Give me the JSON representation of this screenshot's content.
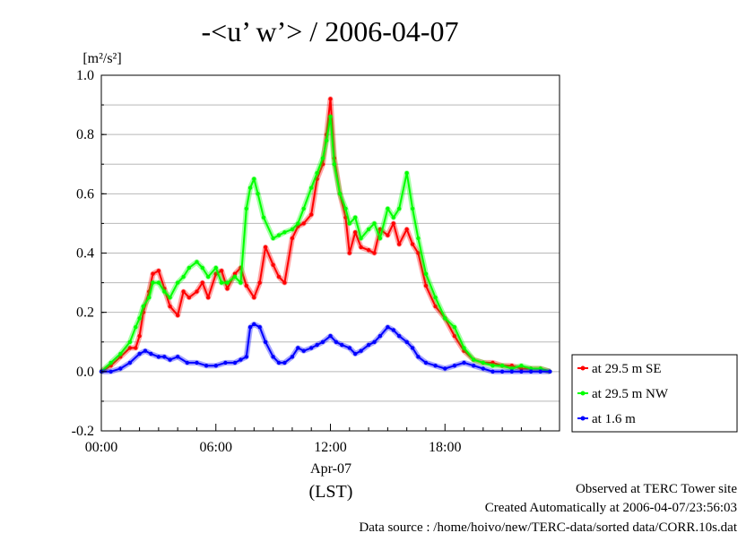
{
  "chart_data": {
    "type": "line",
    "title": "-<u’ w’> / 2006-04-07",
    "ylabel": "[m²/s²]",
    "ylim": [
      -0.2,
      1.0
    ],
    "yticks": [
      -0.2,
      0.0,
      0.2,
      0.4,
      0.6,
      0.8,
      1.0
    ],
    "ytick_labels": [
      "-0.2",
      "0.0",
      "0.2",
      "0.4",
      "0.6",
      "0.8",
      "1.0"
    ],
    "xlim": [
      0,
      24
    ],
    "xticks": [
      0,
      6,
      12,
      18
    ],
    "xtick_labels": [
      "00:00",
      "06:00",
      "12:00",
      "18:00"
    ],
    "xlabel_date": "Apr-07",
    "xlabel_tz": "(LST)",
    "grid": true,
    "legend_position": "right, outside plot",
    "series": [
      {
        "name": "at 29.5 m SE",
        "color": "#ff0000",
        "x": [
          0,
          0.5,
          1,
          1.5,
          1.8,
          2,
          2.2,
          2.5,
          2.7,
          3,
          3.3,
          3.6,
          4,
          4.3,
          4.6,
          5,
          5.3,
          5.6,
          6,
          6.3,
          6.6,
          7,
          7.3,
          7.6,
          8,
          8.3,
          8.6,
          9,
          9.3,
          9.6,
          10,
          10.3,
          10.6,
          11,
          11.3,
          11.6,
          11.8,
          12,
          12.2,
          12.5,
          12.8,
          13,
          13.3,
          13.6,
          14,
          14.3,
          14.6,
          15,
          15.3,
          15.6,
          16,
          16.3,
          16.6,
          17,
          17.5,
          18,
          18.5,
          19,
          19.5,
          20,
          20.5,
          21,
          21.5,
          22,
          22.5,
          23,
          23.5
        ],
        "y": [
          0.0,
          0.02,
          0.05,
          0.08,
          0.08,
          0.12,
          0.2,
          0.27,
          0.33,
          0.34,
          0.28,
          0.22,
          0.19,
          0.27,
          0.25,
          0.27,
          0.3,
          0.25,
          0.33,
          0.34,
          0.28,
          0.33,
          0.35,
          0.29,
          0.25,
          0.3,
          0.42,
          0.36,
          0.32,
          0.3,
          0.45,
          0.49,
          0.5,
          0.53,
          0.65,
          0.7,
          0.8,
          0.92,
          0.72,
          0.6,
          0.52,
          0.4,
          0.47,
          0.42,
          0.41,
          0.4,
          0.48,
          0.46,
          0.5,
          0.43,
          0.48,
          0.43,
          0.4,
          0.29,
          0.22,
          0.18,
          0.12,
          0.07,
          0.04,
          0.03,
          0.03,
          0.02,
          0.02,
          0.01,
          0.01,
          0.01,
          0.0
        ]
      },
      {
        "name": "at 29.5 m NW",
        "color": "#00ff00",
        "x": [
          0,
          0.5,
          1,
          1.5,
          1.8,
          2,
          2.2,
          2.5,
          2.7,
          3,
          3.3,
          3.6,
          4,
          4.3,
          4.6,
          5,
          5.3,
          5.6,
          6,
          6.3,
          6.6,
          7,
          7.3,
          7.6,
          7.8,
          8,
          8.2,
          8.5,
          9,
          9.3,
          9.6,
          10,
          10.3,
          10.6,
          11,
          11.3,
          11.6,
          11.8,
          12,
          12.2,
          12.5,
          12.8,
          13,
          13.3,
          13.6,
          14,
          14.3,
          14.6,
          15,
          15.3,
          15.6,
          16,
          16.3,
          16.6,
          17,
          17.5,
          18,
          18.5,
          19,
          19.5,
          20,
          20.5,
          21,
          21.5,
          22,
          22.5,
          23,
          23.5
        ],
        "y": [
          0.0,
          0.03,
          0.06,
          0.1,
          0.15,
          0.18,
          0.22,
          0.25,
          0.3,
          0.3,
          0.27,
          0.25,
          0.3,
          0.32,
          0.35,
          0.37,
          0.35,
          0.32,
          0.35,
          0.3,
          0.3,
          0.32,
          0.3,
          0.55,
          0.62,
          0.65,
          0.6,
          0.52,
          0.45,
          0.46,
          0.47,
          0.48,
          0.5,
          0.55,
          0.62,
          0.67,
          0.72,
          0.78,
          0.86,
          0.7,
          0.6,
          0.55,
          0.5,
          0.52,
          0.45,
          0.48,
          0.5,
          0.45,
          0.55,
          0.52,
          0.55,
          0.67,
          0.55,
          0.45,
          0.33,
          0.25,
          0.18,
          0.15,
          0.08,
          0.04,
          0.03,
          0.02,
          0.02,
          0.01,
          0.02,
          0.01,
          0.01,
          0.0
        ]
      },
      {
        "name": "at 1.6 m",
        "color": "#0000ff",
        "x": [
          0,
          0.5,
          1,
          1.5,
          2,
          2.3,
          2.6,
          3,
          3.3,
          3.6,
          4,
          4.5,
          5,
          5.5,
          6,
          6.5,
          7,
          7.3,
          7.6,
          7.8,
          8,
          8.3,
          8.6,
          9,
          9.3,
          9.6,
          10,
          10.3,
          10.6,
          11,
          11.3,
          11.6,
          12,
          12.3,
          12.6,
          13,
          13.3,
          13.6,
          14,
          14.3,
          14.6,
          15,
          15.3,
          15.6,
          16,
          16.3,
          16.6,
          17,
          17.5,
          18,
          18.5,
          19,
          19.5,
          20,
          20.5,
          21,
          21.5,
          22,
          22.5,
          23,
          23.5
        ],
        "y": [
          0.0,
          0.0,
          0.01,
          0.03,
          0.06,
          0.07,
          0.06,
          0.05,
          0.05,
          0.04,
          0.05,
          0.03,
          0.03,
          0.02,
          0.02,
          0.03,
          0.03,
          0.04,
          0.05,
          0.15,
          0.16,
          0.15,
          0.1,
          0.05,
          0.03,
          0.03,
          0.05,
          0.08,
          0.07,
          0.08,
          0.09,
          0.1,
          0.12,
          0.1,
          0.09,
          0.08,
          0.06,
          0.07,
          0.09,
          0.1,
          0.12,
          0.15,
          0.14,
          0.12,
          0.1,
          0.08,
          0.05,
          0.03,
          0.02,
          0.01,
          0.02,
          0.03,
          0.02,
          0.01,
          0.0,
          0.0,
          0.0,
          0.0,
          0.0,
          0.0,
          0.0
        ]
      }
    ]
  },
  "footer": {
    "line1": "Observed at TERC Tower site",
    "line2": "Created Automatically at 2006-04-07/23:56:03",
    "line3": "Data source : /home/hoivo/new/TERC-data/sorted  data/CORR.10s.dat"
  }
}
